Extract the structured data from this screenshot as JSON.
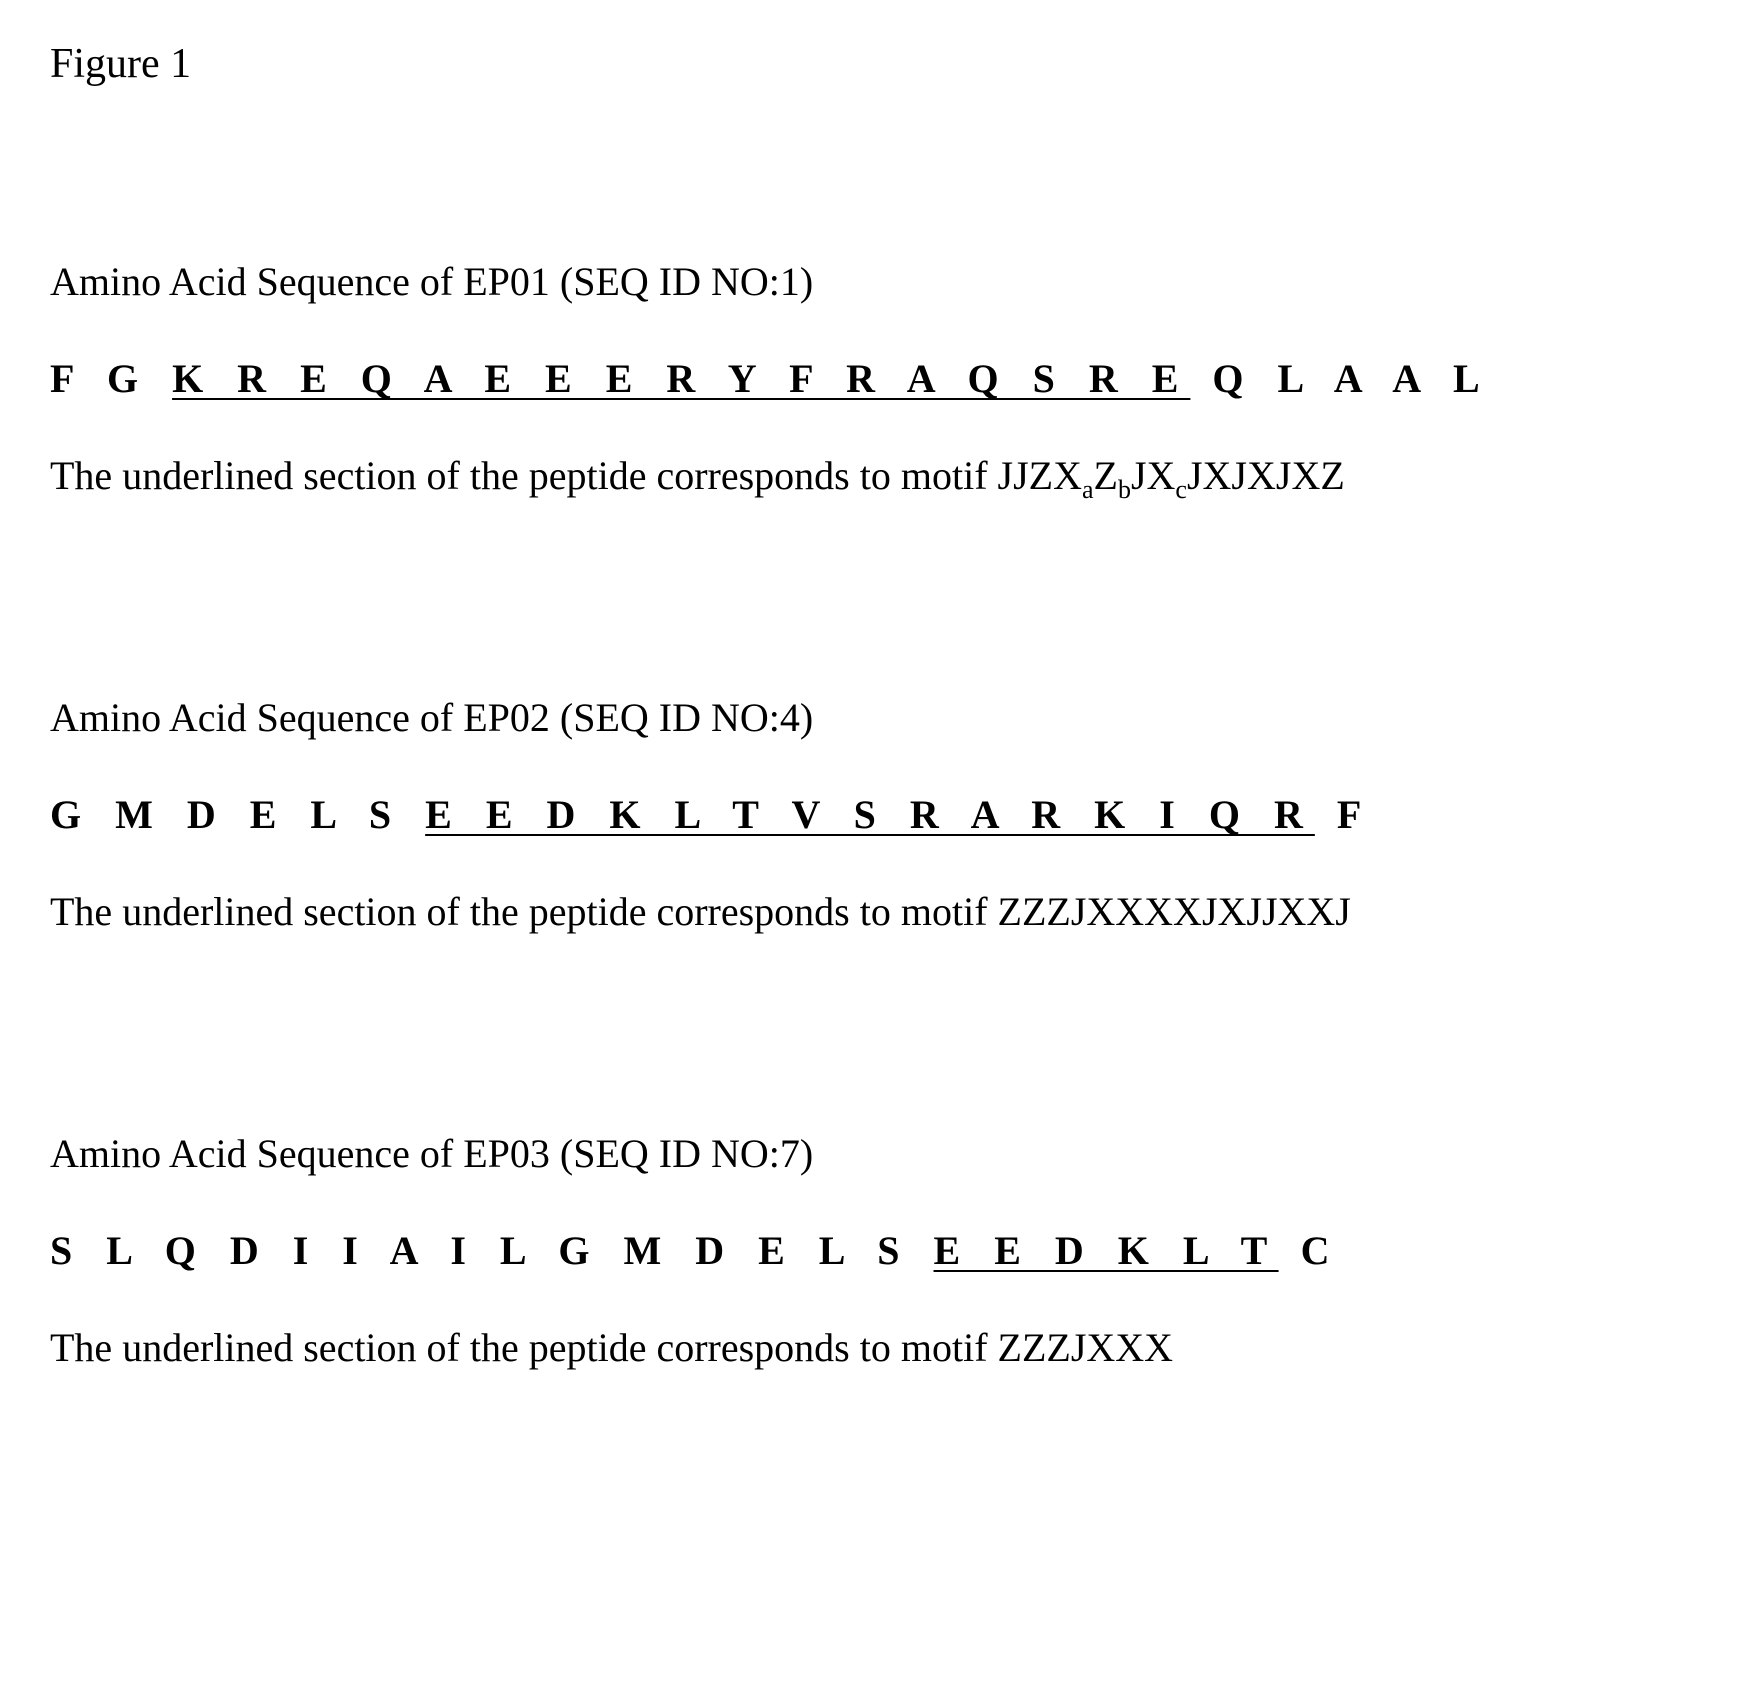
{
  "figureTitle": "Figure 1",
  "blocks": [
    {
      "header": "Amino Acid Sequence of EP01 (SEQ ID NO:1)",
      "seqPre": "F G ",
      "seqUnderlined": "K R E Q A E E E R Y F R A Q S R E",
      "seqPost": " Q L A A L",
      "motifIntro": "The underlined section of the peptide corresponds to motif ",
      "motifParts": {
        "p1": "JJZX",
        "s1": "a",
        "p2": "Z",
        "s2": "b",
        "p3": "JX",
        "s3": "c",
        "p4": "JXJXJXZ"
      }
    },
    {
      "header": "Amino Acid Sequence of EP02 (SEQ ID NO:4)",
      "seqPre": "G M D E L S ",
      "seqUnderlined": "E E D K L T V S R A R K I Q R",
      "seqPost": " F",
      "motifIntro": "The underlined section of the peptide corresponds to motif ",
      "motifPlain": "ZZZJXXXXJXJJXXJ"
    },
    {
      "header": "Amino Acid Sequence of EP03 (SEQ ID NO:7)",
      "seqPre": "S L Q D I I A I L G M D E L S ",
      "seqUnderlined": "E E D K L T",
      "seqPost": " C",
      "motifIntro": "The underlined section of the peptide corresponds to motif ",
      "motifPlain": "ZZZJXXX"
    }
  ],
  "style": {
    "fontFamily": "Times New Roman",
    "bodyFontSizePt": 30,
    "sequenceLetterSpacingPx": 12,
    "textColor": "#000000",
    "backgroundColor": "#ffffff"
  }
}
